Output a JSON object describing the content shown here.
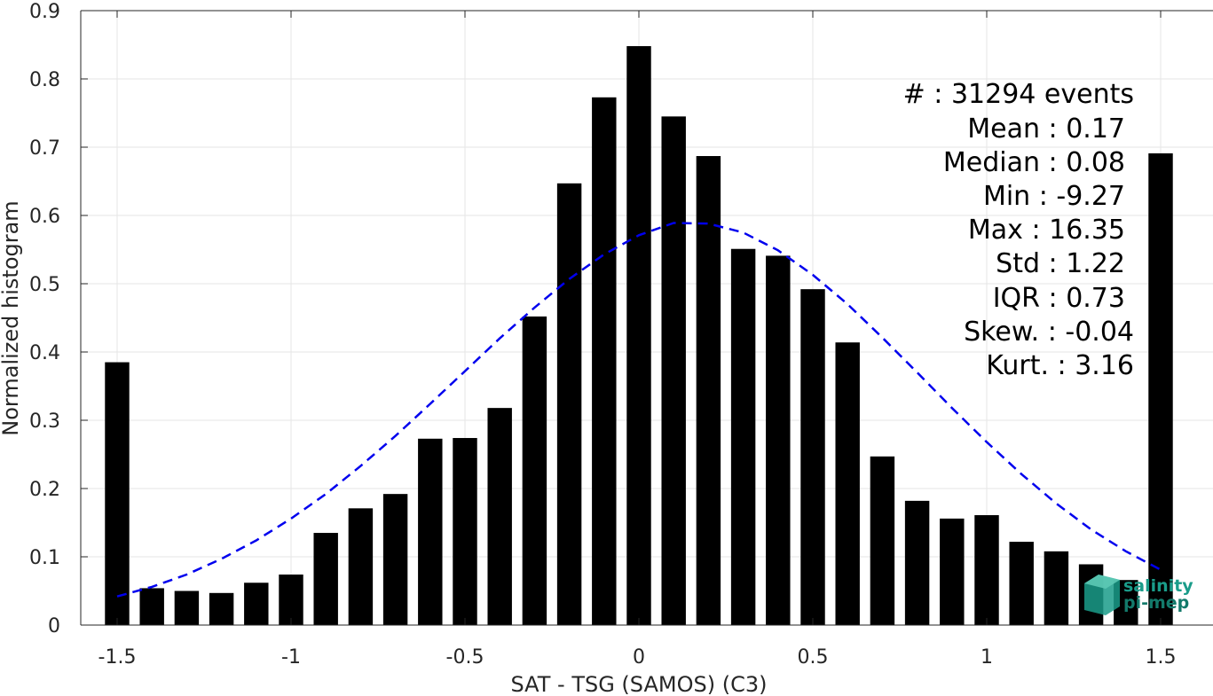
{
  "chart_data": {
    "type": "bar",
    "xlabel": "SAT - TSG (SAMOS) (C3)",
    "ylabel": "Normalized histogram",
    "xlim": [
      -1.6,
      1.6
    ],
    "ylim": [
      0,
      0.9
    ],
    "xticks": [
      -1.5,
      -1,
      -0.5,
      0,
      0.5,
      1,
      1.5
    ],
    "xtick_labels": [
      "-1.5",
      "-1",
      "-0.5",
      "0",
      "0.5",
      "1",
      "1.5"
    ],
    "yticks": [
      0,
      0.1,
      0.2,
      0.3,
      0.4,
      0.5,
      0.6,
      0.7,
      0.8,
      0.9
    ],
    "ytick_labels": [
      "0",
      "0.1",
      "0.2",
      "0.3",
      "0.4",
      "0.5",
      "0.6",
      "0.7",
      "0.8",
      "0.9"
    ],
    "grid": true,
    "bar_color": "#000000",
    "bars": {
      "x": [
        -1.5,
        -1.4,
        -1.3,
        -1.2,
        -1.1,
        -1.0,
        -0.9,
        -0.8,
        -0.7,
        -0.6,
        -0.5,
        -0.4,
        -0.3,
        -0.2,
        -0.1,
        0.0,
        0.1,
        0.2,
        0.3,
        0.4,
        0.5,
        0.6,
        0.7,
        0.8,
        0.9,
        1.0,
        1.1,
        1.2,
        1.3,
        1.4,
        1.5
      ],
      "values": [
        0.385,
        0.054,
        0.05,
        0.047,
        0.062,
        0.074,
        0.135,
        0.171,
        0.192,
        0.273,
        0.274,
        0.318,
        0.452,
        0.647,
        0.773,
        0.848,
        0.745,
        0.687,
        0.551,
        0.541,
        0.492,
        0.414,
        0.247,
        0.182,
        0.156,
        0.161,
        0.122,
        0.108,
        0.089,
        0.066,
        0.691
      ]
    },
    "fit_curve": {
      "style": "dashed",
      "color": "#0000ee",
      "x": [
        -1.5,
        -1.4,
        -1.3,
        -1.2,
        -1.1,
        -1.0,
        -0.9,
        -0.8,
        -0.7,
        -0.6,
        -0.5,
        -0.4,
        -0.3,
        -0.2,
        -0.1,
        0.0,
        0.1,
        0.2,
        0.3,
        0.4,
        0.5,
        0.6,
        0.7,
        0.8,
        0.9,
        1.0,
        1.1,
        1.2,
        1.3,
        1.4,
        1.5
      ],
      "values": [
        0.042,
        0.056,
        0.074,
        0.097,
        0.124,
        0.156,
        0.192,
        0.233,
        0.277,
        0.324,
        0.372,
        0.42,
        0.465,
        0.507,
        0.543,
        0.571,
        0.589,
        0.588,
        0.575,
        0.549,
        0.513,
        0.47,
        0.421,
        0.37,
        0.318,
        0.268,
        0.221,
        0.178,
        0.14,
        0.108,
        0.081
      ]
    }
  },
  "stats": {
    "count": "#  : 31294 events",
    "mean": "Mean : 0.17",
    "median": "Median : 0.08",
    "min": "Min : -9.27",
    "max": "Max : 16.35",
    "std": "Std : 1.22",
    "iqr": "IQR : 0.73",
    "skew": "Skew. : -0.04",
    "kurt": "Kurt. : 3.16"
  },
  "logo": {
    "line1": "salinity",
    "line2": "pi-mep",
    "color": "#1a9c8a"
  }
}
